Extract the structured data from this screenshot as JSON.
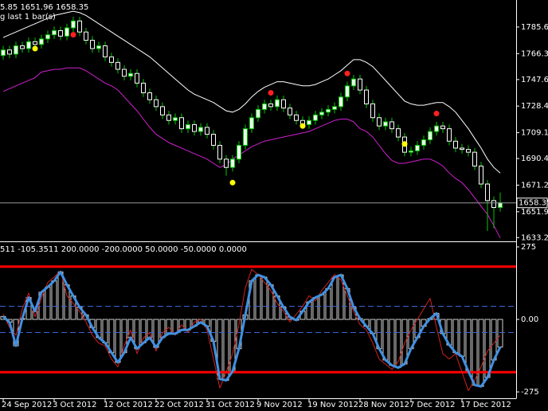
{
  "chart_data": [
    {
      "type": "candlestick",
      "header": "5.85 1651.96 1658.35",
      "subheader": "g last 1 bar(s)",
      "categories": [
        "24 Sep 2012",
        null,
        null,
        null,
        null,
        null,
        null,
        null,
        "3 Oct 2012",
        null,
        null,
        null,
        null,
        null,
        null,
        null,
        "12 Oct 2012",
        null,
        null,
        null,
        null,
        null,
        null,
        null,
        "22 Oct 2012",
        null,
        null,
        null,
        null,
        null,
        null,
        null,
        "31 Oct 2012",
        null,
        null,
        null,
        null,
        null,
        null,
        null,
        "9 Nov 2012",
        null,
        null,
        null,
        null,
        null,
        null,
        null,
        "19 Nov 2012",
        null,
        null,
        null,
        null,
        null,
        null,
        null,
        "28 Nov 2012",
        null,
        null,
        null,
        null,
        null,
        null,
        null,
        "7 Dec 2012",
        null,
        null,
        null,
        null,
        null,
        null,
        null,
        "17 Dec 2012",
        null,
        null,
        null,
        null,
        null,
        null
      ],
      "open": [
        1765,
        1769,
        1766,
        1772,
        1770,
        1775,
        1773,
        1777,
        1780,
        1783,
        1779,
        1785,
        1790,
        1782,
        1776,
        1770,
        1772,
        1764,
        1760,
        1755,
        1750,
        1752,
        1745,
        1738,
        1733,
        1728,
        1722,
        1718,
        1720,
        1712,
        1715,
        1710,
        1713,
        1708,
        1700,
        1690,
        1684,
        1690,
        1700,
        1712,
        1720,
        1726,
        1730,
        1728,
        1733,
        1727,
        1722,
        1718,
        1715,
        1718,
        1722,
        1724,
        1726,
        1728,
        1735,
        1743,
        1748,
        1740,
        1730,
        1720,
        1714,
        1717,
        1712,
        1706,
        1695,
        1696,
        1700,
        1704,
        1710,
        1714,
        1712,
        1703,
        1698,
        1697,
        1695,
        1685,
        1672,
        1660,
        1655
      ],
      "high": [
        1772,
        1772,
        1775,
        1775,
        1778,
        1778,
        1780,
        1783,
        1786,
        1786,
        1788,
        1793,
        1793,
        1785,
        1779,
        1775,
        1775,
        1767,
        1763,
        1758,
        1755,
        1755,
        1748,
        1741,
        1736,
        1731,
        1725,
        1723,
        1723,
        1718,
        1718,
        1716,
        1716,
        1711,
        1703,
        1693,
        1693,
        1703,
        1715,
        1723,
        1729,
        1733,
        1733,
        1736,
        1736,
        1730,
        1725,
        1721,
        1721,
        1725,
        1727,
        1729,
        1731,
        1738,
        1746,
        1751,
        1751,
        1743,
        1733,
        1723,
        1720,
        1720,
        1715,
        1709,
        1699,
        1703,
        1707,
        1713,
        1717,
        1717,
        1715,
        1706,
        1701,
        1700,
        1698,
        1688,
        1675,
        1663,
        1665.85
      ],
      "low": [
        1762,
        1763,
        1763,
        1767,
        1767,
        1770,
        1770,
        1774,
        1777,
        1776,
        1776,
        1782,
        1779,
        1773,
        1767,
        1767,
        1761,
        1757,
        1752,
        1747,
        1747,
        1742,
        1735,
        1730,
        1725,
        1719,
        1715,
        1715,
        1709,
        1709,
        1707,
        1707,
        1705,
        1697,
        1687,
        1678,
        1681,
        1687,
        1697,
        1709,
        1717,
        1723,
        1725,
        1725,
        1724,
        1719,
        1715,
        1712,
        1712,
        1715,
        1719,
        1721,
        1723,
        1725,
        1732,
        1740,
        1737,
        1727,
        1717,
        1711,
        1711,
        1709,
        1703,
        1692,
        1692,
        1693,
        1697,
        1701,
        1707,
        1709,
        1700,
        1695,
        1694,
        1692,
        1682,
        1669,
        1638,
        1640,
        1651.96
      ],
      "close": [
        1769,
        1766,
        1772,
        1770,
        1775,
        1773,
        1777,
        1780,
        1783,
        1779,
        1785,
        1790,
        1782,
        1776,
        1770,
        1772,
        1764,
        1760,
        1755,
        1750,
        1752,
        1745,
        1738,
        1733,
        1728,
        1722,
        1718,
        1720,
        1712,
        1715,
        1710,
        1713,
        1708,
        1700,
        1690,
        1684,
        1690,
        1700,
        1712,
        1720,
        1726,
        1730,
        1728,
        1733,
        1727,
        1722,
        1718,
        1715,
        1718,
        1722,
        1724,
        1726,
        1728,
        1735,
        1743,
        1748,
        1740,
        1730,
        1720,
        1714,
        1717,
        1712,
        1706,
        1695,
        1696,
        1700,
        1704,
        1710,
        1714,
        1712,
        1703,
        1698,
        1697,
        1695,
        1685,
        1672,
        1660,
        1655,
        1658.35
      ],
      "up_color": "#00c800",
      "down_color": "#000000",
      "lines": [
        {
          "color": "#ffffff",
          "values": [
            1778,
            1780,
            1782,
            1784,
            1786,
            1788,
            1790,
            1792,
            1794,
            1795,
            1796,
            1797,
            1796,
            1794,
            1791,
            1788,
            1785,
            1782,
            1779,
            1776,
            1773,
            1770,
            1767,
            1764,
            1760,
            1756,
            1752,
            1748,
            1744,
            1740,
            1737,
            1735,
            1733,
            1731,
            1728,
            1725,
            1724,
            1726,
            1730,
            1735,
            1739,
            1742,
            1744,
            1746,
            1746,
            1745,
            1744,
            1743,
            1743,
            1744,
            1746,
            1748,
            1751,
            1754,
            1758,
            1762,
            1762,
            1760,
            1757,
            1752,
            1747,
            1742,
            1737,
            1732,
            1730,
            1729,
            1729,
            1730,
            1731,
            1731,
            1728,
            1724,
            1718,
            1712,
            1705,
            1698,
            1690,
            1684,
            1680
          ]
        },
        {
          "color": "#d020d0",
          "values": [
            1739,
            1741,
            1743,
            1745,
            1747,
            1749,
            1753,
            1754,
            1755,
            1755,
            1756,
            1756,
            1756,
            1754,
            1751,
            1748,
            1745,
            1743,
            1740,
            1735,
            1730,
            1725,
            1719,
            1713,
            1708,
            1705,
            1702,
            1700,
            1698,
            1696,
            1694,
            1692,
            1690,
            1687,
            1684,
            1686,
            1690,
            1693,
            1696,
            1699,
            1701,
            1703,
            1704,
            1705,
            1706,
            1707,
            1708,
            1709,
            1710,
            1712,
            1714,
            1716,
            1718,
            1719,
            1719,
            1717,
            1712,
            1710,
            1706,
            1700,
            1694,
            1689,
            1687,
            1687,
            1688,
            1689,
            1690,
            1690,
            1688,
            1685,
            1680,
            1676,
            1673,
            1668,
            1662,
            1656,
            1650,
            1642,
            1633
          ]
        }
      ],
      "markers": [
        {
          "color": "#ffff00",
          "values": [
            null,
            null,
            null,
            null,
            null,
            1770,
            null,
            null,
            null,
            null,
            null,
            null,
            null,
            null,
            null,
            null,
            null,
            null,
            null,
            null,
            null,
            null,
            null,
            null,
            null,
            null,
            null,
            null,
            null,
            null,
            null,
            null,
            null,
            null,
            null,
            null,
            1673,
            null,
            null,
            null,
            null,
            null,
            null,
            null,
            null,
            null,
            null,
            1714,
            null,
            null,
            null,
            null,
            null,
            null,
            null,
            null,
            null,
            null,
            null,
            null,
            null,
            null,
            null,
            1701,
            null,
            null,
            null,
            null,
            null,
            null,
            null,
            null,
            null,
            null,
            null,
            null,
            null,
            null,
            null
          ]
        },
        {
          "color": "#ff2020",
          "values": [
            null,
            null,
            null,
            null,
            null,
            null,
            null,
            null,
            null,
            null,
            null,
            1780,
            null,
            null,
            null,
            null,
            null,
            null,
            null,
            null,
            null,
            null,
            null,
            null,
            null,
            null,
            null,
            null,
            null,
            null,
            null,
            null,
            null,
            null,
            null,
            null,
            null,
            null,
            null,
            null,
            null,
            null,
            1738,
            null,
            null,
            null,
            null,
            null,
            null,
            null,
            null,
            null,
            null,
            null,
            1752,
            null,
            null,
            null,
            null,
            null,
            null,
            null,
            null,
            null,
            null,
            null,
            null,
            null,
            1723,
            null,
            null,
            null,
            null,
            null,
            null,
            null,
            null,
            null,
            null
          ]
        }
      ],
      "ylim": [
        1631.1,
        1804.0
      ],
      "yticks": [
        {
          "value": 1785.6,
          "label": "1785.60"
        },
        1766.35,
        {
          "value": 1747.6,
          "label": "1747.60"
        },
        {
          "value": 1728.4,
          "label": "1728.40"
        },
        1709.15,
        1690.45,
        {
          "value": 1671.2,
          "label": "1671.20"
        },
        1651.95,
        1633.25
      ],
      "last_price_line": true
    },
    {
      "type": "cci",
      "header": "511 -105.3511 200.0000 -200.0000 50.0000 -50.0000 0.0000",
      "series": [
        {
          "color": "#4090e0",
          "histogram": true,
          "values": [
            11,
            -11,
            -100,
            3,
            83,
            31,
            103,
            123,
            146,
            180,
            131,
            89,
            46,
            17,
            -31,
            -69,
            -89,
            -126,
            -163,
            -126,
            -69,
            -111,
            -89,
            -69,
            -106,
            -69,
            -54,
            -54,
            -40,
            -40,
            -26,
            -11,
            -26,
            -83,
            -226,
            -231,
            -197,
            -111,
            17,
            146,
            169,
            160,
            131,
            89,
            46,
            9,
            -3,
            31,
            66,
            83,
            94,
            117,
            160,
            169,
            117,
            46,
            3,
            -26,
            -54,
            -111,
            -154,
            -174,
            -183,
            -169,
            -111,
            -69,
            -26,
            3,
            23,
            -54,
            -97,
            -126,
            -140,
            -197,
            -249,
            -254,
            -220,
            -154,
            -105
          ]
        },
        {
          "color": "#d02020",
          "histogram": false,
          "values": [
            20,
            -30,
            -60,
            40,
            100,
            10,
            80,
            140,
            160,
            185,
            90,
            60,
            30,
            -10,
            -60,
            -90,
            -100,
            -150,
            -180,
            -100,
            -40,
            -130,
            -70,
            -50,
            -120,
            -50,
            -30,
            -60,
            -20,
            -50,
            -10,
            0,
            -40,
            -150,
            -260,
            -200,
            -130,
            -20,
            120,
            190,
            170,
            140,
            110,
            60,
            30,
            -10,
            20,
            50,
            90,
            70,
            110,
            140,
            170,
            150,
            90,
            30,
            -20,
            -40,
            -90,
            -150,
            -170,
            -190,
            -160,
            -90,
            -40,
            0,
            40,
            80,
            -30,
            -130,
            -150,
            -130,
            -200,
            -270,
            -230,
            -180,
            -120,
            -90,
            -60
          ]
        }
      ],
      "levels": [
        {
          "value": 200,
          "color": "#ff0000",
          "dashed": false
        },
        {
          "value": -200,
          "color": "#ff0000",
          "dashed": false
        },
        {
          "value": 50,
          "color": "#3c64dc",
          "dashed": true
        },
        {
          "value": -50,
          "color": "#3c64dc",
          "dashed": true
        }
      ],
      "ylim": [
        -290,
        290
      ],
      "yticks": [
        275,
        {
          "value": 0,
          "label": "0.00"
        },
        -275
      ]
    }
  ]
}
